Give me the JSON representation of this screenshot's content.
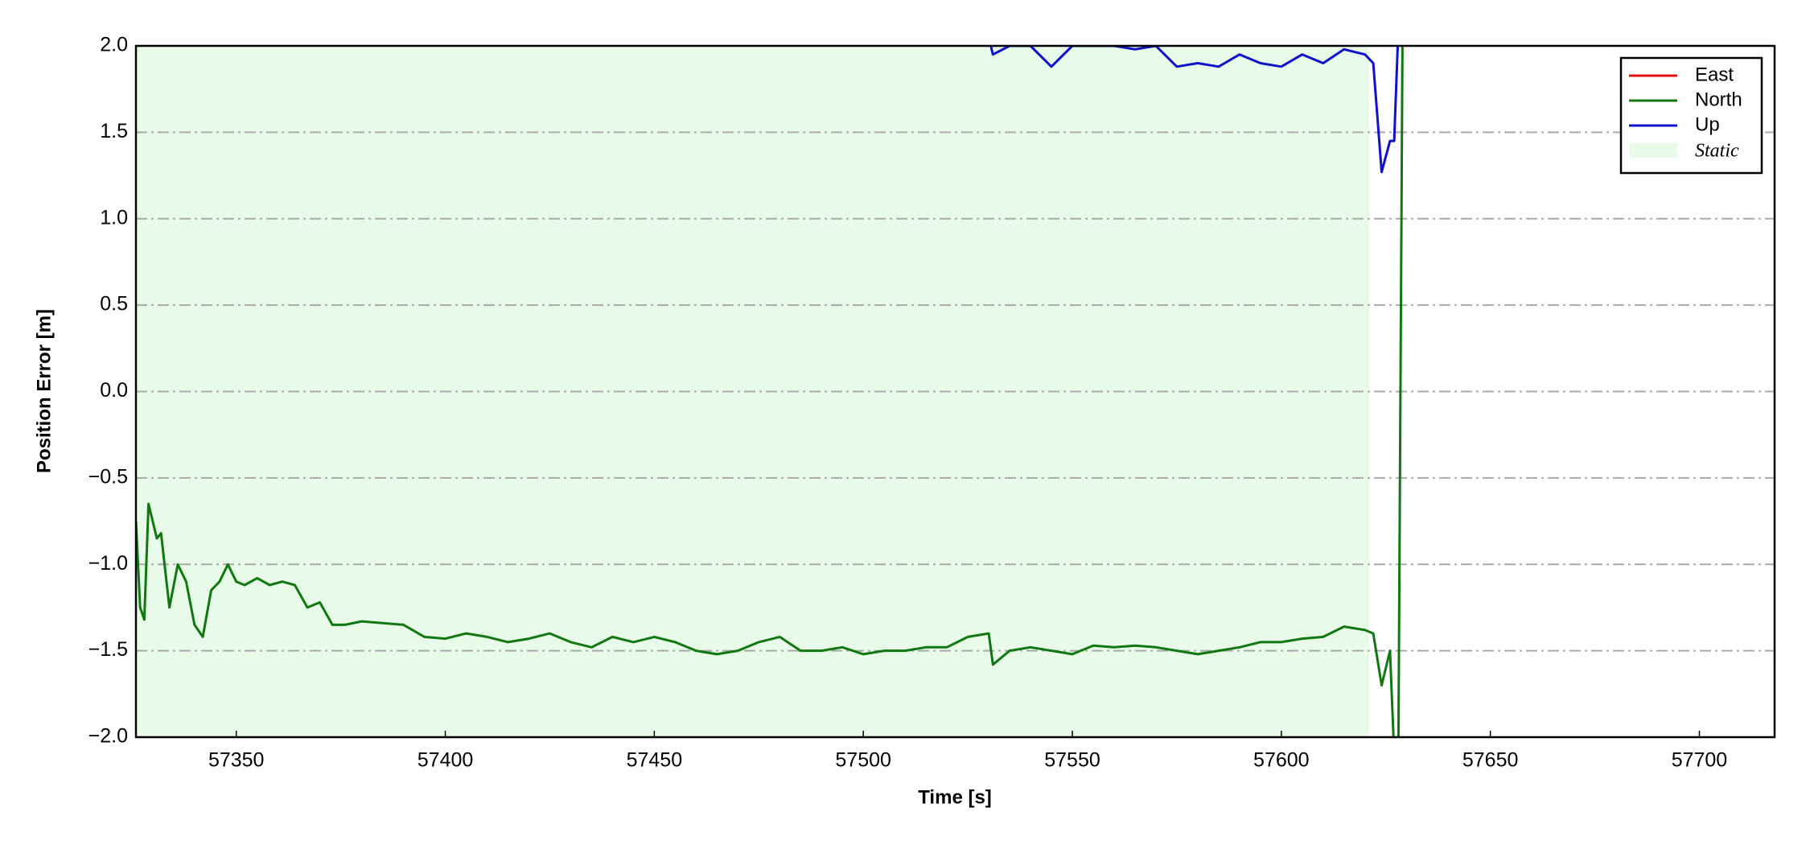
{
  "chart_data": {
    "type": "line",
    "xlabel": "Time [s]",
    "ylabel": "Position Error [m]",
    "xlim": [
      57326,
      57718
    ],
    "ylim": [
      -2.0,
      2.0
    ],
    "xticks": [
      57350,
      57400,
      57450,
      57500,
      57550,
      57600,
      57650,
      57700
    ],
    "yticks": [
      {
        "value": -2.0,
        "label": "−2.0"
      },
      {
        "value": -1.5,
        "label": "−1.5"
      },
      {
        "value": -1.0,
        "label": "−1.0"
      },
      {
        "value": -0.5,
        "label": "−0.5"
      },
      {
        "value": 0.0,
        "label": "0.0"
      },
      {
        "value": 0.5,
        "label": "0.5"
      },
      {
        "value": 1.0,
        "label": "1.0"
      },
      {
        "value": 1.5,
        "label": "1.5"
      },
      {
        "value": 2.0,
        "label": "2.0"
      }
    ],
    "grid": true,
    "legend": "upper right",
    "static": {
      "name": "Static",
      "color": "#e8fbe8",
      "range": [
        57326,
        57621
      ]
    },
    "x": [
      57326,
      57327,
      57328,
      57329,
      57331,
      57332,
      57334,
      57336,
      57338,
      57340,
      57342,
      57344,
      57346,
      57348,
      57350,
      57352,
      57355,
      57358,
      57361,
      57364,
      57367,
      57370,
      57373,
      57376,
      57380,
      57385,
      57390,
      57395,
      57400,
      57405,
      57410,
      57415,
      57420,
      57425,
      57430,
      57435,
      57440,
      57445,
      57450,
      57455,
      57460,
      57465,
      57470,
      57475,
      57480,
      57485,
      57490,
      57495,
      57500,
      57505,
      57510,
      57515,
      57520,
      57525,
      57530,
      57531,
      57535,
      57540,
      57545,
      57550,
      57555,
      57560,
      57565,
      57570,
      57575,
      57580,
      57585,
      57590,
      57595,
      57600,
      57605,
      57610,
      57615,
      57620,
      57622,
      57624,
      57626,
      57627,
      57628,
      57629
    ],
    "series": [
      {
        "name": "East",
        "color": "#dd1111",
        "values": [
          null,
          null,
          null,
          null,
          null,
          null,
          null,
          null,
          null,
          null,
          null,
          null,
          null,
          null,
          null,
          null,
          null,
          null,
          null,
          null,
          null,
          null,
          null,
          null,
          null,
          null,
          null,
          null,
          null,
          null,
          null,
          null,
          null,
          null,
          null,
          null,
          null,
          null,
          null,
          null,
          null,
          null,
          null,
          null,
          null,
          null,
          null,
          null,
          null,
          null,
          null,
          null,
          null,
          null,
          null,
          null,
          null,
          null,
          null,
          null,
          null,
          null,
          null,
          null,
          null,
          null,
          null,
          null,
          null,
          null,
          null,
          null,
          null,
          null,
          null,
          null,
          null,
          null,
          null,
          null
        ]
      },
      {
        "name": "North",
        "color": "#117711",
        "values": [
          -0.75,
          -1.25,
          -1.32,
          -0.65,
          -0.85,
          -0.82,
          -1.25,
          -1.0,
          -1.1,
          -1.35,
          -1.42,
          -1.15,
          -1.1,
          -1.0,
          -1.1,
          -1.12,
          -1.08,
          -1.12,
          -1.1,
          -1.12,
          -1.25,
          -1.22,
          -1.35,
          -1.35,
          -1.33,
          -1.34,
          -1.35,
          -1.42,
          -1.43,
          -1.4,
          -1.42,
          -1.45,
          -1.43,
          -1.4,
          -1.45,
          -1.48,
          -1.42,
          -1.45,
          -1.42,
          -1.45,
          -1.5,
          -1.52,
          -1.5,
          -1.45,
          -1.42,
          -1.5,
          -1.5,
          -1.48,
          -1.52,
          -1.5,
          -1.5,
          -1.48,
          -1.48,
          -1.42,
          -1.4,
          -1.58,
          -1.5,
          -1.48,
          -1.5,
          -1.52,
          -1.47,
          -1.48,
          -1.47,
          -1.48,
          -1.5,
          -1.52,
          -1.5,
          -1.48,
          -1.45,
          -1.45,
          -1.43,
          -1.42,
          -1.36,
          -1.38,
          -1.4,
          -1.7,
          -1.5,
          -2.1,
          -2.1,
          2.1
        ]
      },
      {
        "name": "Up",
        "color": "#1111cc",
        "values": [
          null,
          null,
          null,
          null,
          null,
          null,
          null,
          null,
          null,
          null,
          null,
          null,
          null,
          null,
          null,
          null,
          null,
          null,
          null,
          null,
          null,
          null,
          null,
          null,
          null,
          null,
          null,
          null,
          null,
          null,
          null,
          null,
          null,
          null,
          null,
          null,
          null,
          null,
          null,
          null,
          null,
          null,
          null,
          null,
          null,
          null,
          null,
          null,
          null,
          null,
          null,
          null,
          null,
          null,
          2.05,
          1.95,
          2.0,
          2.0,
          1.88,
          2.0,
          2.0,
          2.0,
          1.98,
          2.0,
          1.88,
          1.9,
          1.88,
          1.95,
          1.9,
          1.88,
          1.95,
          1.9,
          1.98,
          1.95,
          1.9,
          1.27,
          1.45,
          1.45,
          2.1,
          2.1
        ]
      }
    ]
  }
}
